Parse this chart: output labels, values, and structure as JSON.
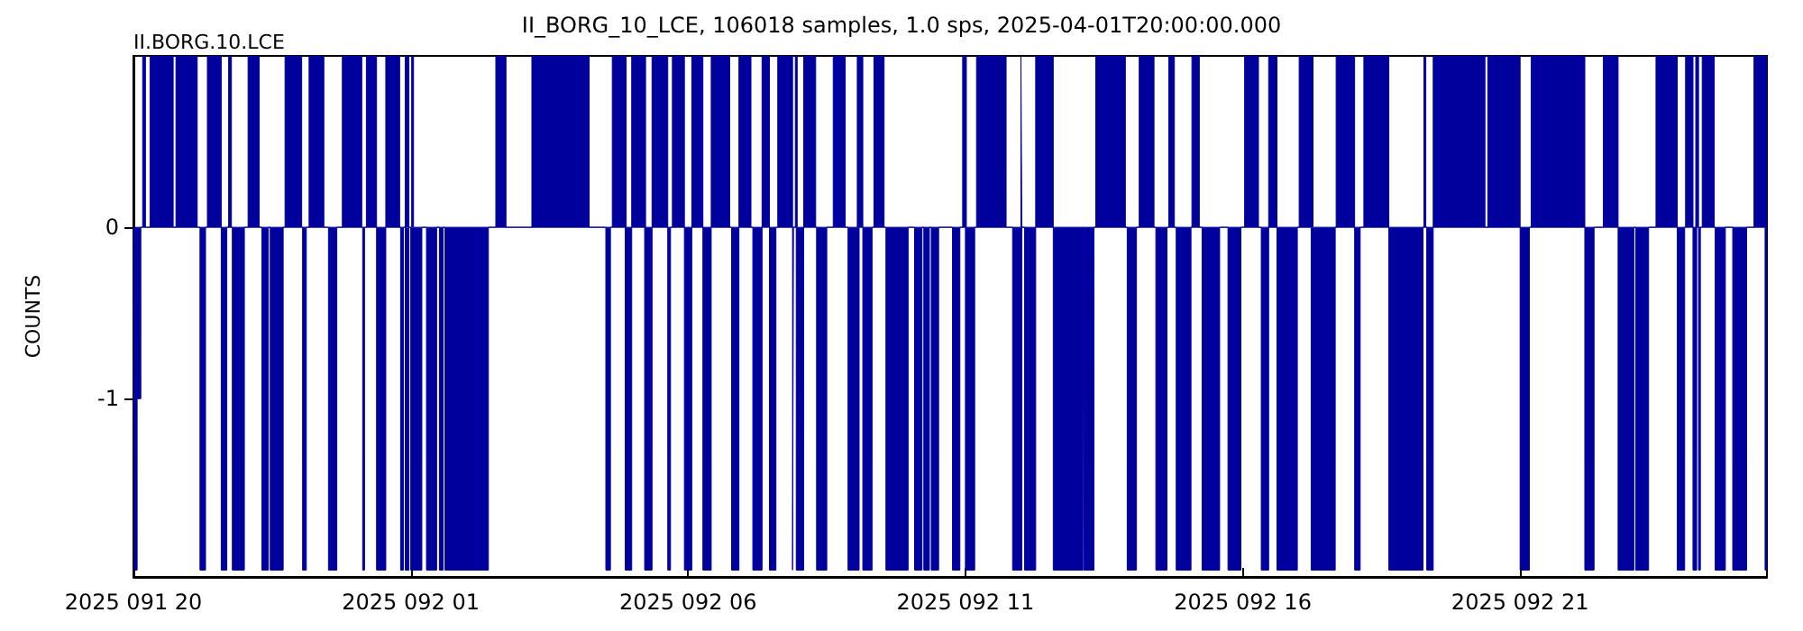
{
  "chart_data": {
    "type": "area",
    "title": "II_BORG_10_LCE, 106018 samples, 1.0 sps, 2025-04-01T20:00:00.000",
    "ylabel": "COUNTS",
    "annotations": [
      "II.BORG.10.LCE"
    ],
    "xlim": [
      "2025-04-01T20:00",
      "2025-04-03T01:27"
    ],
    "ylim": [
      -2.04,
      1
    ],
    "xticks": [
      {
        "value": "2025-04-01T20:00",
        "label": "2025 091 20"
      },
      {
        "value": "2025-04-02T01:00",
        "label": "2025 092 01"
      },
      {
        "value": "2025-04-02T06:00",
        "label": "2025 092 06"
      },
      {
        "value": "2025-04-02T11:00",
        "label": "2025 092 11"
      },
      {
        "value": "2025-04-02T16:00",
        "label": "2025 092 16"
      },
      {
        "value": "2025-04-02T21:00",
        "label": "2025 092 21"
      }
    ],
    "yticks": [
      -1,
      0
    ],
    "grid": false,
    "series": [
      {
        "color": "#00009c",
        "x": [
          "2025-04-01T20:00",
          "2025-04-01T20:10",
          "2025-04-01T20:10",
          "2025-04-01T20:13",
          "2025-04-01T20:13",
          "2025-04-01T20:18",
          "2025-04-01T20:18",
          "2025-04-01T20:43",
          "2025-04-01T20:43",
          "2025-04-01T20:46",
          "2025-04-01T20:46",
          "2025-04-01T21:09",
          "2025-04-01T21:09",
          "2025-04-01T21:20",
          "2025-04-01T21:20",
          "2025-04-01T21:35",
          "2025-04-01T21:35",
          "2025-04-01T21:43",
          "2025-04-01T21:43",
          "2025-04-01T21:46",
          "2025-04-01T21:46",
          "2025-04-01T22:04",
          "2025-04-01T22:04",
          "2025-04-01T22:16",
          "2025-04-01T22:16",
          "2025-04-01T22:44",
          "2025-04-01T22:44",
          "2025-04-01T23:02",
          "2025-04-01T23:02",
          "2025-04-01T23:10",
          "2025-04-01T23:10",
          "2025-04-01T23:26",
          "2025-04-01T23:26",
          "2025-04-01T23:46",
          "2025-04-01T23:46",
          "2025-04-02T00:07",
          "2025-04-02T00:07",
          "2025-04-02T00:12",
          "2025-04-02T00:12",
          "2025-04-02T00:23",
          "2025-04-02T00:23",
          "2025-04-02T00:33",
          "2025-04-02T00:33",
          "2025-04-02T00:48",
          "2025-04-02T00:48",
          "2025-04-02T00:54",
          "2025-04-02T00:54",
          "2025-04-02T00:58",
          "2025-04-02T00:58",
          "2025-04-02T01:01",
          "2025-04-02T01:01",
          "2025-04-02T01:03",
          "2025-04-02T01:03",
          "2025-04-02T02:32",
          "2025-04-02T02:32",
          "2025-04-02T02:43",
          "2025-04-02T02:43",
          "2025-04-02T03:11",
          "2025-04-02T03:11",
          "2025-04-02T04:13",
          "2025-04-02T04:13",
          "2025-04-02T04:38",
          "2025-04-02T04:38",
          "2025-04-02T04:53",
          "2025-04-02T04:53",
          "2025-04-02T04:59",
          "2025-04-02T04:59",
          "2025-04-02T05:14",
          "2025-04-02T05:14",
          "2025-04-02T05:21",
          "2025-04-02T05:21",
          "2025-04-02T05:38",
          "2025-04-02T05:38",
          "2025-04-02T05:43",
          "2025-04-02T05:43",
          "2025-04-02T05:56",
          "2025-04-02T05:56",
          "2025-04-02T06:04",
          "2025-04-02T06:04",
          "2025-04-02T06:16",
          "2025-04-02T06:16",
          "2025-04-02T06:25",
          "2025-04-02T06:25",
          "2025-04-02T06:45",
          "2025-04-02T06:45",
          "2025-04-02T06:55",
          "2025-04-02T06:55",
          "2025-04-02T07:08",
          "2025-04-02T07:08",
          "2025-04-02T07:20",
          "2025-04-02T07:20",
          "2025-04-02T07:28",
          "2025-04-02T07:28",
          "2025-04-02T07:37",
          "2025-04-02T07:37",
          "2025-04-02T07:53",
          "2025-04-02T07:53",
          "2025-04-02T07:56",
          "2025-04-02T07:56",
          "2025-04-02T07:58",
          "2025-04-02T07:58",
          "2025-04-02T08:05",
          "2025-04-02T08:05",
          "2025-04-02T08:18",
          "2025-04-02T08:18",
          "2025-04-02T08:37",
          "2025-04-02T08:37",
          "2025-04-02T08:50",
          "2025-04-02T08:50",
          "2025-04-02T09:03",
          "2025-04-02T09:03",
          "2025-04-02T09:09",
          "2025-04-02T09:09",
          "2025-04-02T09:21",
          "2025-04-02T09:21",
          "2025-04-02T09:32",
          "2025-04-02T09:32",
          "2025-04-02T10:57",
          "2025-04-02T10:57",
          "2025-04-02T11:01",
          "2025-04-02T11:01",
          "2025-04-02T11:12",
          "2025-04-02T11:12",
          "2025-04-02T11:44",
          "2025-04-02T11:44",
          "2025-04-02T12:00",
          "2025-04-02T12:00",
          "2025-04-02T12:01",
          "2025-04-02T12:01",
          "2025-04-02T12:16",
          "2025-04-02T12:16",
          "2025-04-02T12:35",
          "2025-04-02T12:35",
          "2025-04-02T13:21",
          "2025-04-02T13:21",
          "2025-04-02T13:53",
          "2025-04-02T13:53",
          "2025-04-02T14:08",
          "2025-04-02T14:08",
          "2025-04-02T14:24",
          "2025-04-02T14:24",
          "2025-04-02T14:40",
          "2025-04-02T14:40",
          "2025-04-02T14:46",
          "2025-04-02T14:46",
          "2025-04-02T15:05",
          "2025-04-02T15:05",
          "2025-04-02T15:13",
          "2025-04-02T15:13",
          "2025-04-02T16:02",
          "2025-04-02T16:02",
          "2025-04-02T16:17",
          "2025-04-02T16:17",
          "2025-04-02T16:28",
          "2025-04-02T16:28",
          "2025-04-02T16:37",
          "2025-04-02T16:37",
          "2025-04-02T17:01",
          "2025-04-02T17:01",
          "2025-04-02T17:16",
          "2025-04-02T17:16",
          "2025-04-02T17:41",
          "2025-04-02T17:41",
          "2025-04-02T18:01",
          "2025-04-02T18:01",
          "2025-04-02T18:11",
          "2025-04-02T18:11",
          "2025-04-02T18:38",
          "2025-04-02T18:38",
          "2025-04-02T19:16",
          "2025-04-02T19:16",
          "2025-04-02T19:18",
          "2025-04-02T19:18",
          "2025-04-02T19:26",
          "2025-04-02T19:26",
          "2025-04-02T20:22",
          "2025-04-02T20:22",
          "2025-04-02T20:25",
          "2025-04-02T20:25",
          "2025-04-02T21:00",
          "2025-04-02T21:00",
          "2025-04-02T21:12",
          "2025-04-02T21:12",
          "2025-04-02T22:10",
          "2025-04-02T22:10",
          "2025-04-02T22:30",
          "2025-04-02T22:30",
          "2025-04-02T22:46",
          "2025-04-02T22:46",
          "2025-04-02T23:27",
          "2025-04-02T23:27",
          "2025-04-02T23:50",
          "2025-04-02T23:50",
          "2025-04-02T23:59",
          "2025-04-02T23:59",
          "2025-04-03T00:07",
          "2025-04-03T00:07",
          "2025-04-03T00:10",
          "2025-04-03T00:10",
          "2025-04-03T00:13",
          "2025-04-03T00:13",
          "2025-04-03T00:17",
          "2025-04-03T00:17",
          "2025-04-03T00:30",
          "2025-04-03T00:30",
          "2025-04-03T01:13",
          "2025-04-03T01:13",
          "2025-04-03T01:27"
        ],
        "values": [
          0,
          0,
          1,
          1,
          0,
          0,
          1,
          1,
          0,
          0,
          1,
          1,
          0,
          0,
          1,
          1,
          0,
          0,
          1,
          1,
          0,
          0,
          1,
          1,
          0,
          0,
          1,
          1,
          0,
          0,
          1,
          1,
          0,
          0,
          1,
          1,
          0,
          0,
          1,
          1,
          0,
          0,
          1,
          1,
          0,
          0,
          1,
          1,
          0,
          0,
          1,
          1,
          0,
          0,
          1,
          1,
          0,
          0,
          1,
          1,
          0,
          0,
          1,
          1,
          0,
          0,
          1,
          1,
          0,
          0,
          1,
          1,
          0,
          0,
          1,
          1,
          0,
          0,
          1,
          1,
          0,
          0,
          1,
          1,
          0,
          0,
          1,
          1,
          0,
          0,
          1,
          1,
          0,
          0,
          1,
          1,
          0,
          0,
          1,
          1,
          0,
          0,
          1,
          1,
          0,
          0,
          1,
          1,
          0,
          0,
          1,
          1,
          0,
          0,
          1,
          1,
          0,
          0,
          1,
          1,
          0,
          0,
          1,
          1,
          0,
          0,
          1,
          1,
          0,
          0,
          1,
          1,
          0,
          0,
          1,
          1,
          0,
          0,
          1,
          1,
          0,
          0,
          1,
          1,
          0,
          0,
          1,
          1,
          0,
          0,
          1,
          1,
          0,
          0,
          1,
          1,
          0,
          0,
          1,
          1,
          0,
          0,
          1,
          1,
          0,
          0,
          1,
          1,
          0,
          0,
          1,
          1,
          0,
          0,
          1,
          1,
          0,
          0,
          1,
          1,
          0,
          0,
          1,
          1,
          0,
          0,
          1,
          1,
          0,
          0,
          1,
          1,
          0,
          0,
          1,
          1,
          0,
          0,
          1,
          1,
          0,
          0,
          1,
          1,
          0,
          0,
          1,
          1
        ]
      },
      {
        "color": "#00009d",
        "x": [
          "2025-04-01T20:00",
          "2025-04-01T20:01",
          "2025-04-01T20:01",
          "2025-04-01T20:04",
          "2025-04-01T20:04",
          "2025-04-01T20:08",
          "2025-04-01T20:08",
          "2025-04-01T21:12",
          "2025-04-01T21:12",
          "2025-04-01T21:18",
          "2025-04-01T21:18",
          "2025-04-01T21:35",
          "2025-04-01T21:35",
          "2025-04-01T21:41",
          "2025-04-01T21:41",
          "2025-04-01T21:47",
          "2025-04-01T21:47",
          "2025-04-01T22:00",
          "2025-04-01T22:00",
          "2025-04-01T22:19",
          "2025-04-01T22:19",
          "2025-04-01T22:26",
          "2025-04-01T22:26",
          "2025-04-01T22:28",
          "2025-04-01T22:28",
          "2025-04-01T22:42",
          "2025-04-01T22:42",
          "2025-04-01T23:03",
          "2025-04-01T23:03",
          "2025-04-01T23:07",
          "2025-04-01T23:07",
          "2025-04-01T23:31",
          "2025-04-01T23:31",
          "2025-04-01T23:40",
          "2025-04-01T23:40",
          "2025-04-02T00:08",
          "2025-04-02T00:08",
          "2025-04-02T00:10",
          "2025-04-02T00:10",
          "2025-04-02T00:23",
          "2025-04-02T00:23",
          "2025-04-02T00:33",
          "2025-04-02T00:33",
          "2025-04-02T00:49",
          "2025-04-02T00:49",
          "2025-04-02T00:52",
          "2025-04-02T00:52",
          "2025-04-02T00:54",
          "2025-04-02T00:54",
          "2025-04-02T00:58",
          "2025-04-02T00:58",
          "2025-04-02T01:00",
          "2025-04-02T01:00",
          "2025-04-02T01:12",
          "2025-04-02T01:12",
          "2025-04-02T01:17",
          "2025-04-02T01:17",
          "2025-04-02T01:28",
          "2025-04-02T01:28",
          "2025-04-02T01:31",
          "2025-04-02T01:31",
          "2025-04-02T01:35",
          "2025-04-02T01:35",
          "2025-04-02T01:37",
          "2025-04-02T01:37",
          "2025-04-02T02:24",
          "2025-04-02T02:24",
          "2025-04-02T04:31",
          "2025-04-02T04:31",
          "2025-04-02T04:36",
          "2025-04-02T04:36",
          "2025-04-02T04:52",
          "2025-04-02T04:52",
          "2025-04-02T04:59",
          "2025-04-02T04:59",
          "2025-04-02T05:13",
          "2025-04-02T05:13",
          "2025-04-02T05:21",
          "2025-04-02T05:21",
          "2025-04-02T05:38",
          "2025-04-02T05:38",
          "2025-04-02T05:41",
          "2025-04-02T05:41",
          "2025-04-02T05:56",
          "2025-04-02T05:56",
          "2025-04-02T06:04",
          "2025-04-02T06:04",
          "2025-04-02T06:16",
          "2025-04-02T06:16",
          "2025-04-02T06:25",
          "2025-04-02T06:25",
          "2025-04-02T06:47",
          "2025-04-02T06:47",
          "2025-04-02T06:55",
          "2025-04-02T06:55",
          "2025-04-02T07:10",
          "2025-04-02T07:10",
          "2025-04-02T07:20",
          "2025-04-02T07:20",
          "2025-04-02T07:28",
          "2025-04-02T07:28",
          "2025-04-02T07:35",
          "2025-04-02T07:35",
          "2025-04-02T07:53",
          "2025-04-02T07:53",
          "2025-04-02T07:54",
          "2025-04-02T07:54",
          "2025-04-02T07:57",
          "2025-04-02T07:57",
          "2025-04-02T08:05",
          "2025-04-02T08:05",
          "2025-04-02T08:19",
          "2025-04-02T08:19",
          "2025-04-02T08:30",
          "2025-04-02T08:30",
          "2025-04-02T08:53",
          "2025-04-02T08:53",
          "2025-04-02T09:05",
          "2025-04-02T09:05",
          "2025-04-02T09:09",
          "2025-04-02T09:09",
          "2025-04-02T09:19",
          "2025-04-02T09:19",
          "2025-04-02T09:34",
          "2025-04-02T09:34",
          "2025-04-02T09:58",
          "2025-04-02T09:58",
          "2025-04-02T10:05",
          "2025-04-02T10:05",
          "2025-04-02T10:13",
          "2025-04-02T10:13",
          "2025-04-02T10:15",
          "2025-04-02T10:15",
          "2025-04-02T10:21",
          "2025-04-02T10:21",
          "2025-04-02T10:23",
          "2025-04-02T10:23",
          "2025-04-02T10:31",
          "2025-04-02T10:31",
          "2025-04-02T10:46",
          "2025-04-02T10:46",
          "2025-04-02T10:54",
          "2025-04-02T10:54",
          "2025-04-02T11:00",
          "2025-04-02T11:00",
          "2025-04-02T11:10",
          "2025-04-02T11:10",
          "2025-04-02T11:51",
          "2025-04-02T11:51",
          "2025-04-02T12:01",
          "2025-04-02T12:01",
          "2025-04-02T12:04",
          "2025-04-02T12:04",
          "2025-04-02T12:16",
          "2025-04-02T12:16",
          "2025-04-02T12:35",
          "2025-04-02T12:35",
          "2025-04-02T13:07",
          "2025-04-02T13:07",
          "2025-04-02T13:08",
          "2025-04-02T13:08",
          "2025-04-02T13:19",
          "2025-04-02T13:19",
          "2025-04-02T13:55",
          "2025-04-02T13:55",
          "2025-04-02T14:05",
          "2025-04-02T14:05",
          "2025-04-02T14:26",
          "2025-04-02T14:26",
          "2025-04-02T14:38",
          "2025-04-02T14:38",
          "2025-04-02T14:48",
          "2025-04-02T14:48",
          "2025-04-02T15:04",
          "2025-04-02T15:04",
          "2025-04-02T15:16",
          "2025-04-02T15:16",
          "2025-04-02T15:35",
          "2025-04-02T15:35",
          "2025-04-02T15:44",
          "2025-04-02T15:44",
          "2025-04-02T15:58",
          "2025-04-02T15:58",
          "2025-04-02T16:20",
          "2025-04-02T16:20",
          "2025-04-02T16:28",
          "2025-04-02T16:28",
          "2025-04-02T16:37",
          "2025-04-02T16:37",
          "2025-04-02T16:59",
          "2025-04-02T16:59",
          "2025-04-02T17:14",
          "2025-04-02T17:14",
          "2025-04-02T17:40",
          "2025-04-02T17:40",
          "2025-04-02T18:01",
          "2025-04-02T18:01",
          "2025-04-02T18:07",
          "2025-04-02T18:07",
          "2025-04-02T18:38",
          "2025-04-02T18:38",
          "2025-04-02T19:15",
          "2025-04-02T19:15",
          "2025-04-02T19:19",
          "2025-04-02T19:19",
          "2025-04-02T19:26",
          "2025-04-02T19:26",
          "2025-04-02T21:00",
          "2025-04-02T21:00",
          "2025-04-02T21:10",
          "2025-04-02T21:10",
          "2025-04-02T22:10",
          "2025-04-02T22:10",
          "2025-04-02T22:20",
          "2025-04-02T22:20",
          "2025-04-02T22:46",
          "2025-04-02T22:46",
          "2025-04-02T23:03",
          "2025-04-02T23:03",
          "2025-04-02T23:05",
          "2025-04-02T23:05",
          "2025-04-02T23:19",
          "2025-04-02T23:19",
          "2025-04-02T23:50",
          "2025-04-02T23:50",
          "2025-04-02T23:58",
          "2025-04-02T23:58",
          "2025-04-03T00:07",
          "2025-04-03T00:07",
          "2025-04-03T00:11",
          "2025-04-03T00:11",
          "2025-04-03T00:13",
          "2025-04-03T00:13",
          "2025-04-03T00:15",
          "2025-04-03T00:15",
          "2025-04-03T00:31",
          "2025-04-03T00:31",
          "2025-04-03T00:42",
          "2025-04-03T00:42",
          "2025-04-03T00:50",
          "2025-04-03T00:50",
          "2025-04-03T01:05",
          "2025-04-03T01:05",
          "2025-04-03T01:25",
          "2025-04-03T01:25",
          "2025-04-03T01:27"
        ],
        "values": [
          0,
          0,
          -2,
          -2,
          -1,
          -1,
          0,
          0,
          -2,
          -2,
          0,
          0,
          -2,
          -2,
          0,
          0,
          -2,
          -2,
          0,
          0,
          -2,
          -2,
          0,
          0,
          -2,
          -2,
          0,
          0,
          -2,
          -2,
          0,
          0,
          -2,
          -2,
          0,
          0,
          -2,
          -2,
          0,
          0,
          -2,
          -2,
          0,
          0,
          -2,
          -2,
          0,
          0,
          -2,
          -2,
          0,
          0,
          -2,
          -2,
          0,
          0,
          -2,
          -2,
          0,
          0,
          -2,
          -2,
          0,
          0,
          -2,
          -2,
          0,
          0,
          -2,
          -2,
          0,
          0,
          -2,
          -2,
          0,
          0,
          -2,
          -2,
          0,
          0,
          -2,
          -2,
          0,
          0,
          -2,
          -2,
          0,
          0,
          -2,
          -2,
          0,
          0,
          -2,
          -2,
          0,
          0,
          -2,
          -2,
          0,
          0,
          -2,
          -2,
          0,
          0,
          -2,
          -2,
          0,
          0,
          -2,
          -2,
          0,
          0,
          -2,
          -2,
          0,
          0,
          -2,
          -2,
          0,
          0,
          -2,
          -2,
          0,
          0,
          -2,
          -2,
          0,
          0,
          -2,
          -2,
          0,
          0,
          -2,
          -2,
          0,
          0,
          -2,
          -2,
          0,
          0,
          -2,
          -2,
          0,
          0,
          -2,
          -2,
          0,
          0,
          -2,
          -2,
          0,
          0,
          -2,
          -2,
          0,
          0,
          -2,
          -2,
          0,
          0,
          -2,
          -2,
          0,
          0,
          -2,
          -2,
          0,
          0,
          -2,
          -2,
          0,
          0,
          -2,
          -2,
          0,
          0,
          -2,
          -2,
          0,
          0,
          -2,
          -2,
          0,
          0,
          -2,
          -2,
          0,
          0,
          -2,
          -2,
          0,
          0,
          -2,
          -2,
          0,
          0,
          -2,
          -2,
          0,
          0,
          -2,
          -2,
          0,
          0,
          -2,
          -2,
          0,
          0,
          -2,
          -2,
          0,
          0,
          -2,
          -2,
          0,
          0,
          -2,
          -2,
          0,
          0,
          -2,
          -2,
          0,
          0,
          -2,
          -2,
          0,
          0,
          -2,
          -2,
          0,
          0,
          -2,
          -2,
          0,
          0,
          -2,
          -2,
          0,
          0,
          -2,
          -2,
          0,
          0,
          -2,
          -2
        ]
      }
    ]
  }
}
